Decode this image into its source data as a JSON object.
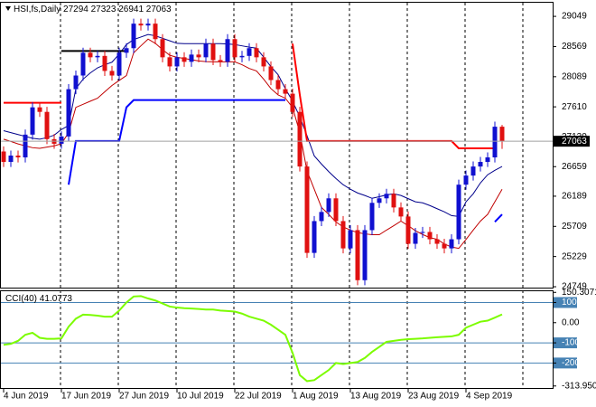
{
  "chart_data": [
    {
      "type": "candlestick",
      "title": "HSI,fs,Daily",
      "categories": [
        "4 Jun 2019",
        null,
        null,
        null,
        null,
        null,
        null,
        null,
        "17 Jun 2019",
        null,
        null,
        null,
        null,
        null,
        null,
        null,
        "27 Jun 2019",
        null,
        null,
        null,
        null,
        null,
        null,
        null,
        "10 Jul 2019",
        null,
        null,
        null,
        null,
        null,
        null,
        null,
        "22 Jul 2019",
        null,
        null,
        null,
        null,
        null,
        null,
        null,
        "1 Aug 2019",
        null,
        null,
        null,
        null,
        null,
        null,
        null,
        "13 Aug 2019",
        null,
        null,
        null,
        null,
        null,
        null,
        null,
        "23 Aug 2019",
        null,
        null,
        null,
        null,
        null,
        null,
        null,
        "4 Sep 2019",
        null,
        null,
        null,
        null,
        null
      ],
      "open": [
        26900,
        26734,
        26835,
        26806,
        27168,
        27602,
        27530,
        27096,
        27023,
        27139,
        27891,
        28108,
        28470,
        28398,
        28420,
        28181,
        28108,
        28470,
        28543,
        28933,
        28904,
        28933,
        28687,
        28398,
        28253,
        28398,
        28326,
        28441,
        28398,
        28615,
        28354,
        28326,
        28687,
        28398,
        28420,
        28543,
        28398,
        28253,
        28036,
        27891,
        27819,
        27530,
        26661,
        25287,
        25793,
        25938,
        26155,
        25793,
        25359,
        25649,
        24853,
        25649,
        26083,
        26155,
        26227,
        26010,
        25866,
        25432,
        25605,
        25620,
        25504,
        25432,
        25359,
        25504,
        26372,
        26517,
        26661,
        26734,
        26806,
        27294
      ],
      "high": [
        26980,
        26915,
        26915,
        27248,
        27682,
        27682,
        27610,
        27176,
        27219,
        27971,
        28188,
        28550,
        28550,
        28500,
        28500,
        28261,
        28550,
        28623,
        29013,
        29013,
        29013,
        29013,
        28767,
        28478,
        28478,
        28478,
        28521,
        28521,
        28695,
        28695,
        28434,
        28767,
        28767,
        28500,
        28623,
        28623,
        28478,
        28333,
        28116,
        27971,
        27899,
        27610,
        26741,
        25873,
        26018,
        26235,
        26235,
        25873,
        25729,
        25729,
        25729,
        26163,
        26235,
        26307,
        26307,
        26090,
        25946,
        25685,
        25700,
        25700,
        25584,
        25512,
        25584,
        26452,
        26597,
        26741,
        26814,
        26886,
        27374,
        27323
      ],
      "low": [
        26654,
        26654,
        26726,
        26726,
        27088,
        27450,
        27016,
        26943,
        26943,
        27059,
        27811,
        28028,
        28318,
        28318,
        28101,
        28028,
        28028,
        28390,
        28463,
        28824,
        28824,
        28607,
        28318,
        28173,
        28173,
        28246,
        28246,
        28318,
        28318,
        28274,
        28246,
        28246,
        28318,
        28318,
        28340,
        28318,
        28173,
        27956,
        27811,
        27739,
        27450,
        26581,
        25207,
        25207,
        25713,
        25858,
        25713,
        25279,
        25279,
        24773,
        24773,
        25569,
        26003,
        26075,
        25930,
        25786,
        25352,
        25352,
        25525,
        25424,
        25352,
        25279,
        25279,
        25424,
        26292,
        26437,
        26581,
        26654,
        26726,
        26941
      ],
      "close": [
        26734,
        26835,
        26806,
        27168,
        27602,
        27530,
        27096,
        27023,
        27139,
        27891,
        28108,
        28470,
        28398,
        28420,
        28181,
        28108,
        28470,
        28543,
        28933,
        28904,
        28933,
        28687,
        28398,
        28253,
        28398,
        28326,
        28441,
        28398,
        28615,
        28354,
        28326,
        28687,
        28398,
        28420,
        28543,
        28398,
        28253,
        28036,
        27891,
        27819,
        27530,
        26661,
        25287,
        25793,
        25938,
        26155,
        25793,
        25359,
        25649,
        24853,
        25649,
        26083,
        26155,
        26227,
        26010,
        25866,
        25432,
        25605,
        25620,
        25504,
        25432,
        25359,
        25504,
        26372,
        26517,
        26661,
        26734,
        26806,
        27294,
        27063
      ],
      "up_color": "#1010d0",
      "down_color": "#e01010",
      "overlays": [
        {
          "color": "#00008b",
          "values": [
            27230,
            27200,
            27170,
            27140,
            27110,
            27096,
            27120,
            27160,
            27250,
            27313,
            27900,
            28050,
            28150,
            28230,
            28280,
            28320,
            28450,
            28600,
            28680,
            28720,
            28760,
            28740,
            28700,
            28660,
            28620,
            28615,
            28615,
            28615,
            28615,
            28615,
            28615,
            28610,
            28600,
            28580,
            28560,
            28543,
            28400,
            28250,
            28120,
            27900,
            27700,
            27450,
            27150,
            26830,
            26700,
            26580,
            26470,
            26372,
            26300,
            26240,
            26200,
            26155,
            26180,
            26210,
            26227,
            26200,
            26150,
            26100,
            26083,
            26040,
            25990,
            25940,
            25880,
            25866,
            26100,
            26227,
            26400,
            26530,
            26600,
            26661
          ]
        },
        {
          "color": "#c00000",
          "values": [
            27096,
            27060,
            27020,
            26990,
            26960,
            26951,
            26970,
            26990,
            27023,
            27200,
            27602,
            27650,
            27700,
            27747,
            27850,
            27950,
            28030,
            28108,
            28470,
            28580,
            28687,
            28620,
            28520,
            28430,
            28398,
            28380,
            28360,
            28340,
            28330,
            28326,
            28326,
            28326,
            28326,
            28280,
            28220,
            28181,
            28050,
            27900,
            27800,
            27747,
            27600,
            27200,
            26589,
            26300,
            26010,
            25900,
            25780,
            25700,
            25649,
            25610,
            25590,
            25576,
            25576,
            25650,
            25720,
            25793,
            25720,
            25640,
            25580,
            25530,
            25504,
            25430,
            25380,
            25359,
            25500,
            25650,
            25793,
            25900,
            26100,
            26300
          ]
        },
        {
          "color": "#ff0000",
          "values": [
            27674,
            27674,
            27674,
            27674,
            27674,
            27674,
            27674,
            27674,
            27674,
            null,
            null,
            null,
            null,
            null,
            null,
            null,
            null,
            null,
            null,
            null,
            null,
            null,
            null,
            null,
            null,
            null,
            null,
            null,
            null,
            null,
            null,
            null,
            null,
            null,
            null,
            null,
            null,
            null,
            null,
            null,
            28615,
            27800,
            27067,
            27067,
            27067,
            27067,
            27067,
            27067,
            27067,
            27067,
            27067,
            27067,
            27067,
            27067,
            27067,
            27067,
            27067,
            27067,
            27067,
            27067,
            27067,
            27067,
            27067,
            26951,
            26951,
            26951,
            26951,
            26951,
            26951,
            null
          ]
        },
        {
          "color": "#000000",
          "values": [
            null,
            null,
            null,
            null,
            null,
            null,
            null,
            null,
            28499,
            28499,
            28499,
            28499,
            28499,
            28499,
            28499,
            28499,
            28499,
            28499,
            null,
            null,
            null,
            null,
            null,
            null,
            null,
            null,
            null,
            null,
            null,
            null,
            null,
            null,
            null,
            null,
            null,
            null,
            null,
            null,
            null,
            null,
            null,
            null,
            null,
            null,
            null,
            null,
            null,
            null,
            null,
            null,
            null,
            null,
            null,
            null,
            null,
            null,
            null,
            null,
            null,
            null,
            null,
            null,
            null,
            null,
            null,
            null,
            null,
            null,
            null,
            null
          ]
        },
        {
          "color": "#0000ff",
          "values": [
            null,
            null,
            null,
            null,
            null,
            null,
            null,
            null,
            null,
            26372,
            27067,
            27067,
            27067,
            27067,
            27067,
            27067,
            27067,
            27602,
            27718,
            27718,
            27718,
            27718,
            27718,
            27718,
            27718,
            27718,
            27718,
            27718,
            27718,
            27718,
            27718,
            27718,
            27718,
            27718,
            27718,
            27718,
            27718,
            27718,
            27718,
            27718,
            null,
            null,
            null,
            null,
            null,
            null,
            null,
            null,
            null,
            null,
            null,
            null,
            null,
            null,
            null,
            null,
            null,
            null,
            null,
            null,
            null,
            null,
            null,
            null,
            null,
            null,
            null,
            null,
            25780,
            25900
          ]
        }
      ],
      "ylim": [
        24735,
        29266
      ],
      "yticks": [
        29049,
        28569,
        28089,
        27610,
        27130,
        26659,
        26189,
        25709,
        25229,
        24749
      ]
    },
    {
      "type": "line",
      "title": "CCI(40)",
      "series": [
        {
          "color": "#7cfc00",
          "values": [
            -110,
            -105,
            -90,
            -60,
            -50,
            -75,
            -80,
            -80,
            -78,
            -20,
            20,
            40,
            38,
            35,
            30,
            30,
            60,
            100,
            130,
            132,
            120,
            110,
            95,
            80,
            75,
            72,
            70,
            68,
            65,
            65,
            60,
            58,
            55,
            45,
            30,
            20,
            10,
            -10,
            -35,
            -60,
            -150,
            -260,
            -290,
            -285,
            -260,
            -235,
            -200,
            -205,
            -200,
            -195,
            -175,
            -145,
            -120,
            -95,
            -90,
            -85,
            -82,
            -80,
            -78,
            -75,
            -72,
            -70,
            -68,
            -60,
            -25,
            -10,
            5,
            10,
            25,
            41.0773
          ]
        }
      ],
      "ylim": [
        -324,
        156
      ],
      "yticks": [
        150.3071,
        100,
        {
          "value": 0,
          "label": "0.00"
        },
        -100,
        -200,
        {
          "value": -313.95,
          "label": "-313.950"
        }
      ],
      "levels": [
        100,
        -100,
        -200
      ],
      "level_color": "#4682b4"
    }
  ]
}
